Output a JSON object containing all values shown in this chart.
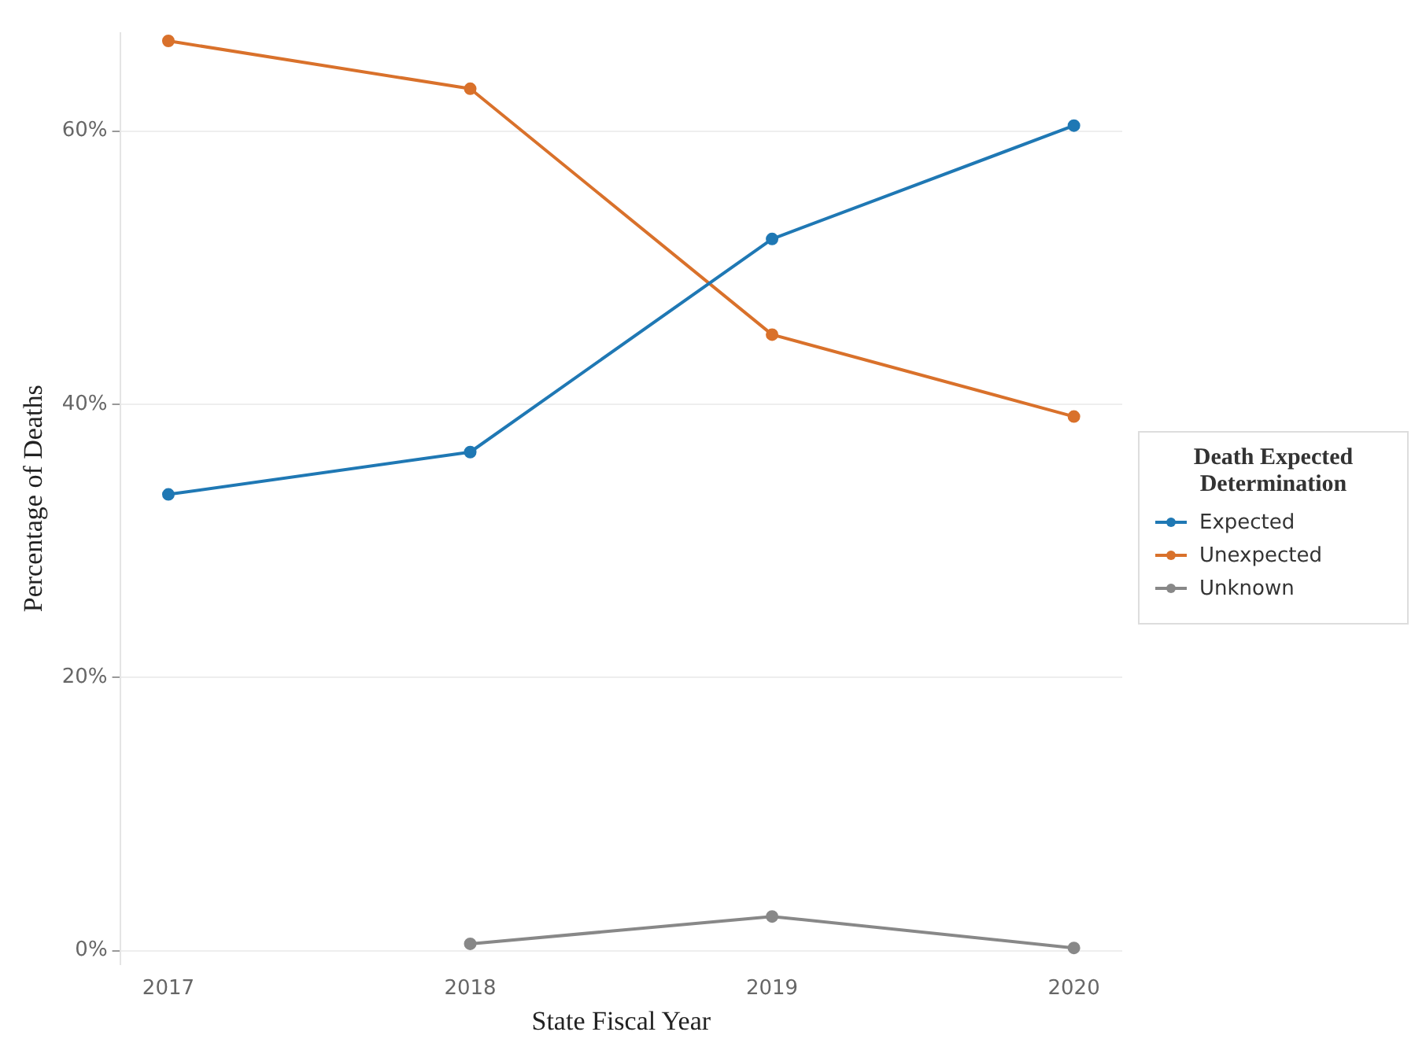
{
  "chart_data": {
    "type": "line",
    "xlabel": "State Fiscal Year",
    "ylabel": "Percentage of Deaths",
    "legend_title": "Death Expected Determination",
    "x": [
      2017,
      2018,
      2019,
      2020
    ],
    "xlim": [
      2016.84,
      2020.16
    ],
    "xticks": [
      2017,
      2018,
      2019,
      2020
    ],
    "ylim": [
      -1,
      67.2
    ],
    "yticks": [
      {
        "value": 0,
        "label": "0%"
      },
      {
        "value": 20,
        "label": "20%"
      },
      {
        "value": 40,
        "label": "40%"
      },
      {
        "value": 60,
        "label": "60%"
      }
    ],
    "grid": "y",
    "legend": "right",
    "marker": "circle",
    "line_style": "solid",
    "series": [
      {
        "name": "Expected",
        "color": "#1f78b4",
        "values": [
          33.4,
          36.5,
          52.1,
          60.4
        ]
      },
      {
        "name": "Unexpected",
        "color": "#d9712b",
        "values": [
          66.6,
          63.1,
          45.1,
          39.1
        ]
      },
      {
        "name": "Unknown",
        "color": "#888888",
        "values": [
          null,
          0.5,
          2.5,
          0.2
        ]
      }
    ]
  }
}
